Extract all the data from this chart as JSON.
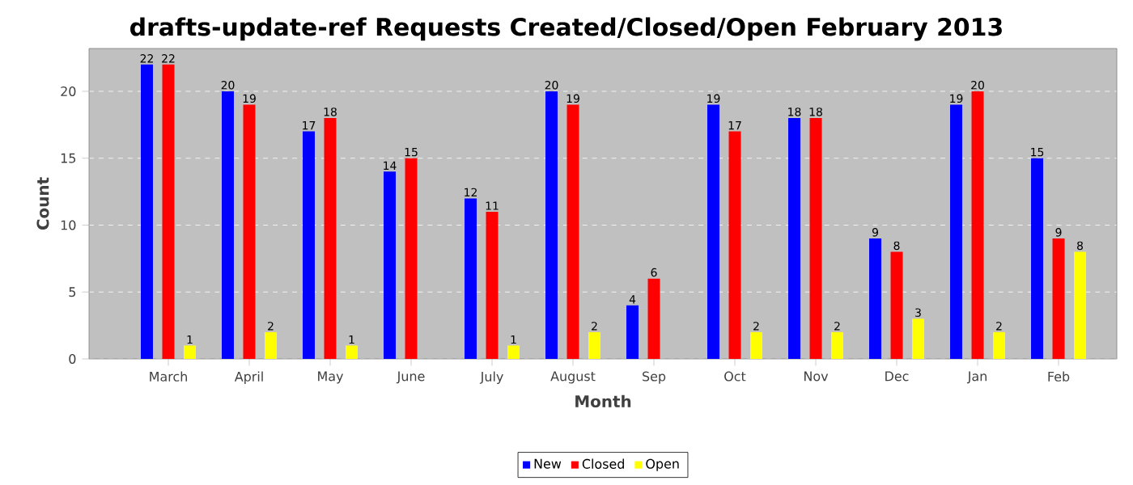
{
  "chart_data": {
    "type": "bar",
    "title": "drafts-update-ref Requests Created/Closed/Open February 2013",
    "xlabel": "Month",
    "ylabel": "Count",
    "categories": [
      "March",
      "April",
      "May",
      "June",
      "July",
      "August",
      "Sep",
      "Oct",
      "Nov",
      "Dec",
      "Jan",
      "Feb"
    ],
    "series": [
      {
        "name": "New",
        "color": "#0000ff",
        "values": [
          22,
          20,
          17,
          14,
          12,
          20,
          4,
          19,
          18,
          9,
          19,
          15
        ]
      },
      {
        "name": "Closed",
        "color": "#ff0000",
        "values": [
          22,
          19,
          18,
          15,
          11,
          19,
          6,
          17,
          18,
          8,
          20,
          9
        ]
      },
      {
        "name": "Open",
        "color": "#ffff00",
        "values": [
          1,
          2,
          1,
          null,
          1,
          2,
          null,
          2,
          2,
          3,
          2,
          8
        ]
      }
    ],
    "ylim": [
      0,
      23.2
    ],
    "yticks": [
      0,
      5,
      10,
      15,
      20
    ],
    "grid": "y",
    "legend": "bottom",
    "data_labels": true
  }
}
